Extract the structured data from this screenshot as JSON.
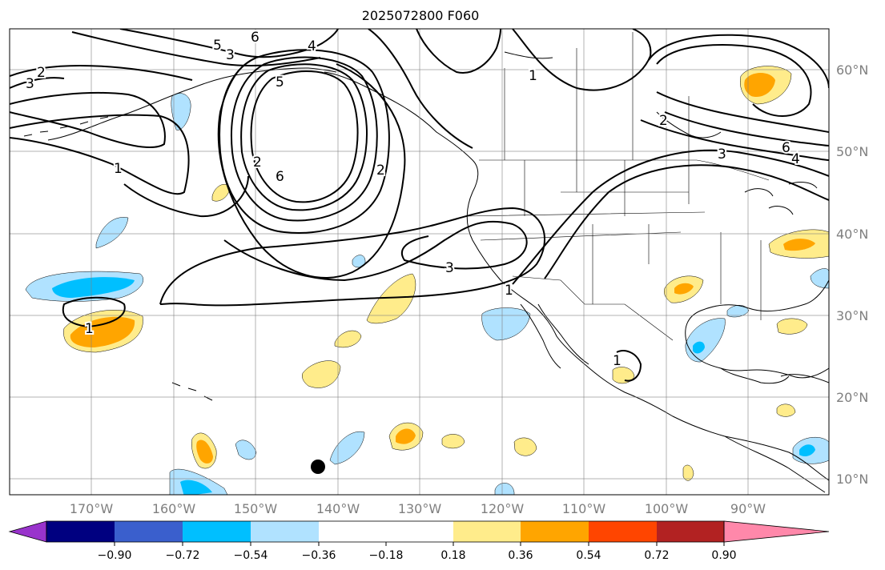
{
  "title": "2025072800 F060",
  "lon_labels": [
    "170°W",
    "160°W",
    "150°W",
    "140°W",
    "130°W",
    "120°W",
    "110°W",
    "100°W",
    "90°W"
  ],
  "lat_labels": [
    "60°N",
    "50°N",
    "40°N",
    "30°N",
    "20°N",
    "10°N"
  ],
  "colorbar": {
    "tick_labels": [
      "−0.90",
      "−0.72",
      "−0.54",
      "−0.36",
      "−0.18",
      "0.18",
      "0.36",
      "0.54",
      "0.72",
      "0.90"
    ],
    "colors": [
      "#9933cc",
      "#000080",
      "#3a5fcd",
      "#00bfff",
      "#b0e2ff",
      "#ffffff",
      "#ffec8b",
      "#ffa500",
      "#ff4500",
      "#b22222",
      "#ff88aa"
    ]
  },
  "contour_labels": [
    "6",
    "5",
    "3",
    "4",
    "2",
    "3",
    "5",
    "6",
    "2",
    "1",
    "1",
    "2",
    "3",
    "1",
    "1",
    "2",
    "6",
    "4",
    "3",
    "1"
  ],
  "fill_colors": {
    "light_blue": "#b0e2ff",
    "blue": "#00bfff",
    "light_yellow": "#ffec8b",
    "orange": "#ffa500"
  }
}
